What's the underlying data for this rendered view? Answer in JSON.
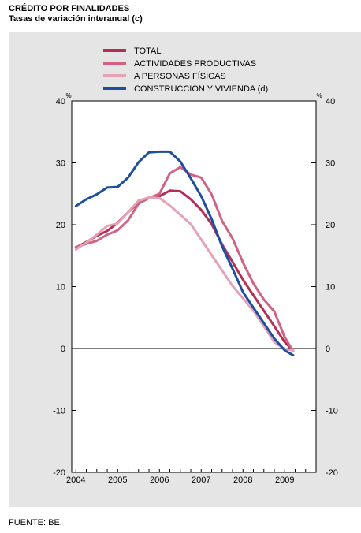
{
  "title": "CRÉDITO POR FINALIDADES",
  "subtitle": "Tasas de variación interanual (c)",
  "source": "FUENTE: BE.",
  "chart_data": {
    "type": "line",
    "unit_left": "%",
    "unit_right": "%",
    "ylim": [
      -20,
      40
    ],
    "yticks": [
      -20,
      -10,
      0,
      10,
      20,
      30,
      40
    ],
    "xlim": [
      2003.9,
      2009.75
    ],
    "xticks": [
      {
        "label": "2004",
        "x": 2004
      },
      {
        "label": "2005",
        "x": 2005
      },
      {
        "label": "2006",
        "x": 2006
      },
      {
        "label": "2007",
        "x": 2007
      },
      {
        "label": "2008",
        "x": 2008
      },
      {
        "label": "2009",
        "x": 2009
      }
    ],
    "grid": false,
    "legend_position": "top-center",
    "series": [
      {
        "name": "TOTAL",
        "color": "#b52e56",
        "x": [
          2004.0,
          2004.25,
          2004.5,
          2004.75,
          2005.0,
          2005.25,
          2005.5,
          2005.75,
          2006.0,
          2006.25,
          2006.5,
          2006.75,
          2007.0,
          2007.25,
          2007.5,
          2007.75,
          2008.0,
          2008.25,
          2008.5,
          2008.75,
          2009.0,
          2009.2
        ],
        "y": [
          16.3,
          17.2,
          18.2,
          19.0,
          20.3,
          22.0,
          23.6,
          24.3,
          24.6,
          25.5,
          25.4,
          24.1,
          22.4,
          20.1,
          16.8,
          14.0,
          11.1,
          8.6,
          6.1,
          3.6,
          1.0,
          -0.3
        ]
      },
      {
        "name": "ACTIVIDADES PRODUCTIVAS",
        "color": "#cf6381",
        "x": [
          2004.0,
          2004.25,
          2004.5,
          2004.75,
          2005.0,
          2005.25,
          2005.5,
          2005.75,
          2006.0,
          2006.25,
          2006.5,
          2006.75,
          2007.0,
          2007.25,
          2007.5,
          2007.75,
          2008.0,
          2008.25,
          2008.5,
          2008.75,
          2009.0,
          2009.2
        ],
        "y": [
          16.4,
          16.9,
          17.4,
          18.4,
          19.1,
          20.7,
          23.4,
          24.3,
          25.0,
          28.3,
          29.3,
          28.1,
          27.6,
          24.9,
          20.6,
          17.8,
          13.9,
          10.5,
          7.9,
          6.0,
          1.8,
          -0.4
        ]
      },
      {
        "name": "A PERSONAS FÍSICAS",
        "color": "#e5a2b7",
        "x": [
          2004.0,
          2004.25,
          2004.5,
          2004.75,
          2005.0,
          2005.25,
          2005.5,
          2005.75,
          2006.0,
          2006.25,
          2006.5,
          2006.75,
          2007.0,
          2007.25,
          2007.5,
          2007.75,
          2008.0,
          2008.25,
          2008.5,
          2008.75,
          2009.0,
          2009.2
        ],
        "y": [
          16.0,
          17.1,
          18.4,
          19.8,
          20.2,
          22.0,
          23.9,
          24.4,
          24.3,
          23.1,
          21.6,
          20.1,
          17.6,
          15.1,
          12.6,
          10.1,
          8.1,
          6.1,
          3.6,
          1.0,
          -0.1,
          -0.3
        ]
      },
      {
        "name": "CONSTRUCCIÓN Y VIVIENDA (d)",
        "color": "#1f4f9c",
        "x": [
          2004.0,
          2004.25,
          2004.5,
          2004.75,
          2005.0,
          2005.25,
          2005.5,
          2005.75,
          2006.0,
          2006.25,
          2006.5,
          2006.75,
          2007.0,
          2007.25,
          2007.5,
          2007.75,
          2008.0,
          2008.25,
          2008.5,
          2008.75,
          2009.0,
          2009.2
        ],
        "y": [
          23.0,
          24.1,
          24.9,
          26.0,
          26.1,
          27.6,
          30.1,
          31.7,
          31.8,
          31.8,
          30.2,
          27.5,
          24.6,
          20.9,
          16.5,
          12.9,
          9.1,
          6.6,
          4.1,
          1.6,
          -0.3,
          -1.1
        ]
      }
    ]
  }
}
